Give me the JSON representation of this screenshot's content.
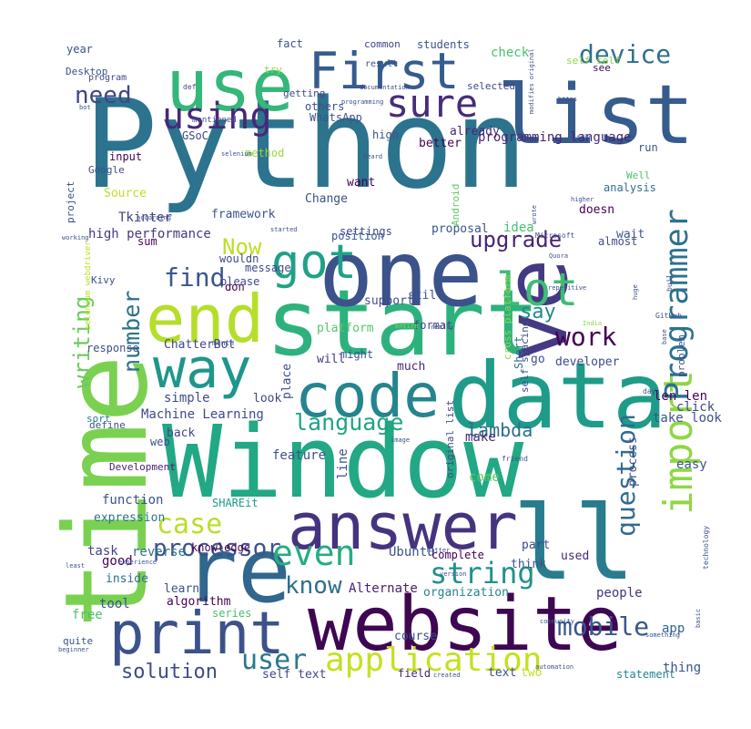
{
  "words": [
    {
      "text": "Python",
      "color": "#2c738e"
    },
    {
      "text": "Window",
      "color": "#22a884"
    },
    {
      "text": "time",
      "color": "#7ad151"
    },
    {
      "text": "website",
      "color": "#3e0751"
    },
    {
      "text": "start",
      "color": "#2db27d"
    },
    {
      "text": "data",
      "color": "#1e9c89"
    },
    {
      "text": "re",
      "color": "#31668e"
    },
    {
      "text": "ll",
      "color": "#287c8e"
    },
    {
      "text": "one",
      "color": "#3b528b"
    },
    {
      "text": "answer",
      "color": "#46337f"
    },
    {
      "text": "list",
      "color": "#365c8d"
    },
    {
      "text": "use",
      "color": "#35b779"
    },
    {
      "text": "ve",
      "color": "#443a83"
    },
    {
      "text": "end",
      "color": "#b5de2b"
    },
    {
      "text": "code",
      "color": "#25858e"
    },
    {
      "text": "print",
      "color": "#3b528b"
    },
    {
      "text": "First",
      "color": "#365c8d"
    },
    {
      "text": "way",
      "color": "#1f968b"
    },
    {
      "text": "import",
      "color": "#8fd744"
    },
    {
      "text": "Programmer",
      "color": "#2c728e"
    },
    {
      "text": "got",
      "color": "#1fa187"
    },
    {
      "text": "using",
      "color": "#482878"
    },
    {
      "text": "sure",
      "color": "#472c7a"
    },
    {
      "text": "lot",
      "color": "#3fbc73"
    },
    {
      "text": "application",
      "color": "#c5e021"
    },
    {
      "text": "language",
      "color": "#20a386"
    },
    {
      "text": "device",
      "color": "#2d708e"
    },
    {
      "text": "even",
      "color": "#26ad81"
    },
    {
      "text": "string",
      "color": "#21918c"
    },
    {
      "text": "mobile",
      "color": "#39568c"
    },
    {
      "text": "need",
      "color": "#404688"
    },
    {
      "text": "case",
      "color": "#b8de29"
    },
    {
      "text": "processor",
      "color": "#3b528b"
    },
    {
      "text": "find",
      "color": "#39568c"
    },
    {
      "text": "upgrade",
      "color": "#482475"
    },
    {
      "text": "know",
      "color": "#2e6f8e"
    },
    {
      "text": "question",
      "color": "#306a8e"
    },
    {
      "text": "solution",
      "color": "#3e4c8a"
    },
    {
      "text": "user",
      "color": "#2a788e"
    },
    {
      "text": "lambda",
      "color": "#2e6d8e"
    },
    {
      "text": "work",
      "color": "#440154"
    },
    {
      "text": "say",
      "color": "#23898e"
    },
    {
      "text": "number",
      "color": "#2d718e"
    },
    {
      "text": "writing",
      "color": "#67cc5c"
    },
    {
      "text": "Now",
      "color": "#bddf26"
    },
    {
      "text": "programming language",
      "color": "#482677"
    },
    {
      "text": "high performance",
      "color": "#453781"
    },
    {
      "text": "Machine Learning",
      "color": "#3e4989"
    },
    {
      "text": "Ubuntu",
      "color": "#3b528b"
    },
    {
      "text": "Alternate",
      "color": "#482071"
    },
    {
      "text": "ChatterBot",
      "color": "#3f4788"
    },
    {
      "text": "Tkinter",
      "color": "#424086"
    },
    {
      "text": "developer",
      "color": "#3e4a89"
    },
    {
      "text": "function",
      "color": "#3b528b"
    },
    {
      "text": "expression",
      "color": "#2c738e"
    },
    {
      "text": "knowledge",
      "color": "#440154"
    },
    {
      "text": "reverse",
      "color": "#2c738e"
    },
    {
      "text": "task",
      "color": "#414487"
    },
    {
      "text": "algorithm",
      "color": "#440154"
    },
    {
      "text": "series",
      "color": "#44bf70"
    },
    {
      "text": "learn",
      "color": "#3a548c"
    },
    {
      "text": "inside",
      "color": "#2e6f8e"
    },
    {
      "text": "good",
      "color": "#440154"
    },
    {
      "text": "tool",
      "color": "#3b518b"
    },
    {
      "text": "free",
      "color": "#4ac16d"
    },
    {
      "text": "quite",
      "color": "#3a548c"
    },
    {
      "text": "self text",
      "color": "#3f4788"
    },
    {
      "text": "people",
      "color": "#46327e"
    },
    {
      "text": "app",
      "color": "#31678e"
    },
    {
      "text": "thing",
      "color": "#39568c"
    },
    {
      "text": "statement",
      "color": "#25848e"
    },
    {
      "text": "text",
      "color": "#3b528b"
    },
    {
      "text": "two",
      "color": "#c2df23"
    },
    {
      "text": "field",
      "color": "#482475"
    },
    {
      "text": "course",
      "color": "#3c4f8a"
    },
    {
      "text": "organization",
      "color": "#25858e"
    },
    {
      "text": "complete",
      "color": "#440154"
    },
    {
      "text": "think",
      "color": "#39568c"
    },
    {
      "text": "part",
      "color": "#3e4a89"
    },
    {
      "text": "used",
      "color": "#482575"
    },
    {
      "text": "easy",
      "color": "#3b528b"
    },
    {
      "text": "click",
      "color": "#3e4989"
    },
    {
      "text": "take look",
      "color": "#3b528b"
    },
    {
      "text": "len len",
      "color": "#440154"
    },
    {
      "text": "come",
      "color": "#5ec962"
    },
    {
      "text": "make",
      "color": "#482878"
    },
    {
      "text": "line",
      "color": "#3c4f8a"
    },
    {
      "text": "feature",
      "color": "#3b528b"
    },
    {
      "text": "back",
      "color": "#3f4788"
    },
    {
      "text": "look",
      "color": "#414487"
    },
    {
      "text": "simple",
      "color": "#3e4c8a"
    },
    {
      "text": "define",
      "color": "#3a548c"
    },
    {
      "text": "sort",
      "color": "#2a788e"
    },
    {
      "text": "web",
      "color": "#3b528b"
    },
    {
      "text": "Development",
      "color": "#482173"
    },
    {
      "text": "SHAREit",
      "color": "#1e9b8a"
    },
    {
      "text": "response",
      "color": "#3b528b"
    },
    {
      "text": "might",
      "color": "#3b528b"
    },
    {
      "text": "much",
      "color": "#482878"
    },
    {
      "text": "will",
      "color": "#453882"
    },
    {
      "text": "place",
      "color": "#3e4989"
    },
    {
      "text": "go",
      "color": "#3b528b"
    },
    {
      "text": "Short",
      "color": "#2e6e8e"
    },
    {
      "text": "format",
      "color": "#3f4889"
    },
    {
      "text": "still",
      "color": "#3b528b"
    },
    {
      "text": "support",
      "color": "#3e4c8a"
    },
    {
      "text": "platform",
      "color": "#56c667"
    },
    {
      "text": "don",
      "color": "#440154"
    },
    {
      "text": "please",
      "color": "#3f4788"
    },
    {
      "text": "message",
      "color": "#3e4989"
    },
    {
      "text": "sum",
      "color": "#440154"
    },
    {
      "text": "position",
      "color": "#39568c"
    },
    {
      "text": "wouldn",
      "color": "#3e4989"
    },
    {
      "text": "framework",
      "color": "#3b528b"
    },
    {
      "text": "settings",
      "color": "#3e4a89"
    },
    {
      "text": "Change",
      "color": "#3b528b"
    },
    {
      "text": "want",
      "color": "#440154"
    },
    {
      "text": "proposal",
      "color": "#3b528b"
    },
    {
      "text": "idea",
      "color": "#44bf70"
    },
    {
      "text": "doesn",
      "color": "#440154"
    },
    {
      "text": "wait",
      "color": "#3b528b"
    },
    {
      "text": "almost",
      "color": "#3e4a89"
    },
    {
      "text": "Well",
      "color": "#4ac16d"
    },
    {
      "text": "analysis",
      "color": "#2e6f8e"
    },
    {
      "text": "run",
      "color": "#3b528b"
    },
    {
      "text": "Google",
      "color": "#3b528b"
    },
    {
      "text": "input",
      "color": "#440154"
    },
    {
      "text": "GSoC",
      "color": "#3e4989"
    },
    {
      "text": "high",
      "color": "#3b528b"
    },
    {
      "text": "already",
      "color": "#482878"
    },
    {
      "text": "better",
      "color": "#440154"
    },
    {
      "text": "method",
      "color": "#9bd93c"
    },
    {
      "text": "others",
      "color": "#3e4c8a"
    },
    {
      "text": "WhatsApp",
      "color": "#3b528b"
    },
    {
      "text": "getting",
      "color": "#3e4989"
    },
    {
      "text": "try",
      "color": "#8ed645"
    },
    {
      "text": "fact",
      "color": "#3b528b"
    },
    {
      "text": "common",
      "color": "#3f4788"
    },
    {
      "text": "result",
      "color": "#3b528b"
    },
    {
      "text": "students",
      "color": "#3b528b"
    },
    {
      "text": "check",
      "color": "#4ac16d"
    },
    {
      "text": "selected",
      "color": "#3e4989"
    },
    {
      "text": "self self",
      "color": "#8ed645"
    },
    {
      "text": "see",
      "color": "#440154"
    },
    {
      "text": "year",
      "color": "#3b528b"
    },
    {
      "text": "Desktop",
      "color": "#3b528b"
    },
    {
      "text": "program",
      "color": "#3e4989"
    },
    {
      "text": "Source",
      "color": "#bddf26"
    },
    {
      "text": "project",
      "color": "#3b528b"
    },
    {
      "text": "Android",
      "color": "#5ec962"
    },
    {
      "text": "process",
      "color": "#3b528b"
    },
    {
      "text": "self spacing",
      "color": "#3e4a89"
    },
    {
      "text": "cross platform",
      "color": "#8ed645"
    },
    {
      "text": "problem",
      "color": "#3b528b"
    },
    {
      "text": "original list",
      "color": "#3e4989"
    },
    {
      "text": "selenium webdriver",
      "color": "#bddf26"
    },
    {
      "text": "Kivy",
      "color": "#3b528b"
    },
    {
      "text": "mentioned",
      "color": "#3b528b"
    },
    {
      "text": "def",
      "color": "#3e4989"
    },
    {
      "text": "bot",
      "color": "#3b528b"
    },
    {
      "text": "documentation",
      "color": "#3e4989"
    },
    {
      "text": "modifies original",
      "color": "#3b528b"
    },
    {
      "text": "https",
      "color": "#3b528b"
    },
    {
      "text": "little",
      "color": "#3b528b"
    },
    {
      "text": "higher",
      "color": "#3b528b"
    },
    {
      "text": "wrote",
      "color": "#3b528b"
    },
    {
      "text": "Microsoft",
      "color": "#3b528b"
    },
    {
      "text": "Quora",
      "color": "#3b528b"
    },
    {
      "text": "repetitive",
      "color": "#3b528b"
    },
    {
      "text": "GitHub",
      "color": "#3b528b"
    },
    {
      "text": "really",
      "color": "#3b528b"
    },
    {
      "text": "India",
      "color": "#8ed645"
    },
    {
      "text": "entire",
      "color": "#8ed645"
    },
    {
      "text": "month",
      "color": "#3b528b"
    },
    {
      "text": "working",
      "color": "#3b528b"
    },
    {
      "text": "according",
      "color": "#3b528b"
    },
    {
      "text": "started",
      "color": "#3b528b"
    },
    {
      "text": "selenium",
      "color": "#3b528b"
    },
    {
      "text": "heard",
      "color": "#3b528b"
    },
    {
      "text": "programming",
      "color": "#3b528b"
    },
    {
      "text": "day",
      "color": "#3b528b"
    },
    {
      "text": "friend",
      "color": "#3b528b"
    },
    {
      "text": "matter",
      "color": "#3b528b"
    },
    {
      "text": "version",
      "color": "#3b528b"
    },
    {
      "text": "technology",
      "color": "#3b528b"
    },
    {
      "text": "basic",
      "color": "#3b528b"
    },
    {
      "text": "something",
      "color": "#3b528b"
    },
    {
      "text": "community",
      "color": "#3b528b"
    },
    {
      "text": "automation",
      "color": "#3b528b"
    },
    {
      "text": "created",
      "color": "#3b528b"
    },
    {
      "text": "beginner",
      "color": "#3b528b"
    },
    {
      "text": "experience",
      "color": "#3b528b"
    },
    {
      "text": "least",
      "color": "#3b528b"
    },
    {
      "text": "image",
      "color": "#3b528b"
    },
    {
      "text": "base",
      "color": "#3b528b"
    },
    {
      "text": "huge",
      "color": "#3b528b"
    },
    {
      "text": "buil",
      "color": "#3b528b"
    },
    {
      "text": "site",
      "color": "#3b528b"
    }
  ]
}
